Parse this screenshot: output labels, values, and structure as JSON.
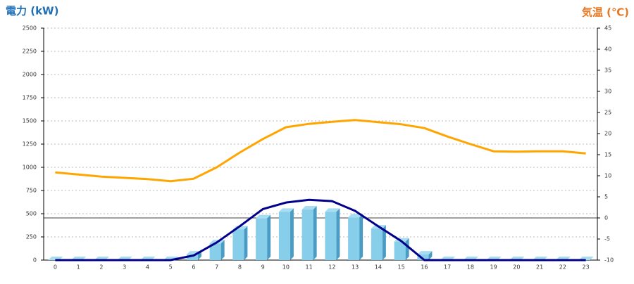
{
  "chart_data": {
    "type": "bar",
    "ylabel": "電力 (kW)",
    "y2label": "気温 (℃)",
    "categories": [
      "0",
      "1",
      "2",
      "3",
      "4",
      "5",
      "6",
      "7",
      "8",
      "9",
      "10",
      "11",
      "12",
      "13",
      "14",
      "15",
      "16",
      "17",
      "18",
      "19",
      "20",
      "21",
      "22",
      "23"
    ],
    "series": [
      {
        "type": "bar",
        "color": "#87ceeb",
        "values": [
          0,
          0,
          0,
          0,
          0,
          0,
          60,
          180,
          330,
          450,
          520,
          545,
          520,
          460,
          340,
          200,
          60,
          0,
          0,
          0,
          0,
          0,
          0,
          0
        ]
      },
      {
        "type": "line",
        "color": "#00008b",
        "values": [
          0,
          0,
          0,
          0,
          0,
          0,
          50,
          190,
          365,
          550,
          620,
          650,
          635,
          530,
          365,
          205,
          0,
          0,
          0,
          0,
          0,
          0,
          0,
          0
        ]
      },
      {
        "type": "line",
        "color": "#ffa500",
        "axis": "y2",
        "values": [
          10.8,
          10.3,
          9.8,
          9.5,
          9.2,
          8.7,
          9.3,
          12,
          15.5,
          18.7,
          21.5,
          22.3,
          22.8,
          23.2,
          22.7,
          22.2,
          21.3,
          19.3,
          17.5,
          15.8,
          15.7,
          15.8,
          15.8,
          15.3
        ]
      }
    ],
    "ylim": [
      0,
      2500
    ],
    "yticks": [
      0,
      250,
      500,
      750,
      1000,
      1250,
      1500,
      1750,
      2000,
      2250,
      2500
    ],
    "y2lim": [
      -10,
      45
    ],
    "y2ticks": [
      -10,
      -5,
      0,
      5,
      10,
      15,
      20,
      25,
      30,
      35,
      40,
      45
    ],
    "grid": true
  }
}
